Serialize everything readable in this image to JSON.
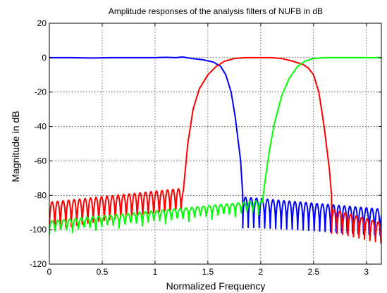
{
  "chart_data": {
    "type": "line",
    "title": "Amplitude responses of the analysis filters of NUFB in dB",
    "xlabel": "Normalized Frequency",
    "ylabel": "Magnitude in dB",
    "xlim": [
      0,
      3.1416
    ],
    "ylim": [
      -120,
      20
    ],
    "xticks": [
      0,
      0.5,
      1,
      1.5,
      2,
      2.5,
      3
    ],
    "xtick_labels": [
      "0",
      "0.5",
      "1",
      "1.5",
      "2",
      "2.5",
      "3"
    ],
    "yticks": [
      -120,
      -100,
      -80,
      -60,
      -40,
      -20,
      0,
      20
    ],
    "ytick_labels": [
      "-120",
      "-100",
      "-80",
      "-60",
      "-40",
      "-20",
      "0",
      "20"
    ],
    "grid": true,
    "series": [
      {
        "color": "#0000ff",
        "points": [
          [
            0,
            0
          ],
          [
            0.2,
            0
          ],
          [
            0.4,
            -0.2
          ],
          [
            0.6,
            0
          ],
          [
            0.8,
            0
          ],
          [
            1.0,
            0
          ],
          [
            1.1,
            0.2
          ],
          [
            1.2,
            0
          ],
          [
            1.26,
            0.4
          ],
          [
            1.35,
            -0.5
          ],
          [
            1.45,
            -1.2
          ],
          [
            1.55,
            -2.5
          ],
          [
            1.62,
            -5
          ],
          [
            1.67,
            -10
          ],
          [
            1.72,
            -20
          ],
          [
            1.76,
            -35
          ],
          [
            1.79,
            -50
          ],
          [
            1.81,
            -60
          ],
          [
            1.83,
            -80
          ]
        ],
        "floor": {
          "start": 1.83,
          "end": 3.1416,
          "base": -81,
          "depth": 18,
          "period": 0.052,
          "slope": -7
        }
      },
      {
        "color": "#ff0000",
        "points": [
          [
            1.25,
            -84
          ],
          [
            1.27,
            -76
          ],
          [
            1.31,
            -50
          ],
          [
            1.36,
            -30
          ],
          [
            1.42,
            -18
          ],
          [
            1.5,
            -10
          ],
          [
            1.58,
            -5
          ],
          [
            1.66,
            -2
          ],
          [
            1.75,
            -0.5
          ],
          [
            1.85,
            0
          ],
          [
            2.0,
            0
          ],
          [
            2.1,
            0
          ],
          [
            2.2,
            -0.5
          ],
          [
            2.3,
            -2
          ],
          [
            2.4,
            -4
          ],
          [
            2.45,
            -6
          ],
          [
            2.5,
            -10
          ],
          [
            2.55,
            -20
          ],
          [
            2.6,
            -40
          ],
          [
            2.65,
            -65
          ],
          [
            2.67,
            -80
          ]
        ],
        "floor": [
          {
            "start": 0,
            "end": 1.25,
            "base": -84,
            "depth": 18,
            "period": 0.052,
            "slope": 8
          },
          {
            "start": 2.67,
            "end": 3.1416,
            "base": -88,
            "depth": 14,
            "period": 0.052,
            "slope": -8
          }
        ]
      },
      {
        "color": "#00ff00",
        "points": [
          [
            2.02,
            -82
          ],
          [
            2.04,
            -72
          ],
          [
            2.08,
            -55
          ],
          [
            2.13,
            -38
          ],
          [
            2.2,
            -22
          ],
          [
            2.27,
            -12
          ],
          [
            2.35,
            -5
          ],
          [
            2.42,
            -2
          ],
          [
            2.5,
            -0.5
          ],
          [
            2.6,
            0
          ],
          [
            3.1416,
            0
          ]
        ],
        "floor": {
          "start": 0,
          "end": 2.02,
          "base": -95,
          "depth": 8,
          "period": 0.055,
          "slope": 12
        }
      }
    ]
  }
}
